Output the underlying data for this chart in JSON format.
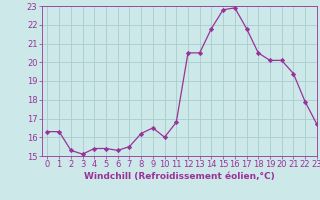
{
  "x": [
    0,
    1,
    2,
    3,
    4,
    5,
    6,
    7,
    8,
    9,
    10,
    11,
    12,
    13,
    14,
    15,
    16,
    17,
    18,
    19,
    20,
    21,
    22,
    23
  ],
  "y": [
    16.3,
    16.3,
    15.3,
    15.1,
    15.4,
    15.4,
    15.3,
    15.5,
    16.2,
    16.5,
    16.0,
    16.8,
    20.5,
    20.5,
    21.8,
    22.8,
    22.9,
    21.8,
    20.5,
    20.1,
    20.1,
    19.4,
    17.9,
    16.7
  ],
  "line_color": "#993399",
  "marker": "D",
  "marker_size": 2.2,
  "bg_color": "#cce8e8",
  "grid_color": "#aacccc",
  "xlabel": "Windchill (Refroidissement éolien,°C)",
  "ylim": [
    15,
    23
  ],
  "xlim": [
    -0.5,
    23
  ],
  "yticks": [
    15,
    16,
    17,
    18,
    19,
    20,
    21,
    22,
    23
  ],
  "xticks": [
    0,
    1,
    2,
    3,
    4,
    5,
    6,
    7,
    8,
    9,
    10,
    11,
    12,
    13,
    14,
    15,
    16,
    17,
    18,
    19,
    20,
    21,
    22,
    23
  ],
  "label_fontsize": 6.5,
  "tick_fontsize": 6.0
}
